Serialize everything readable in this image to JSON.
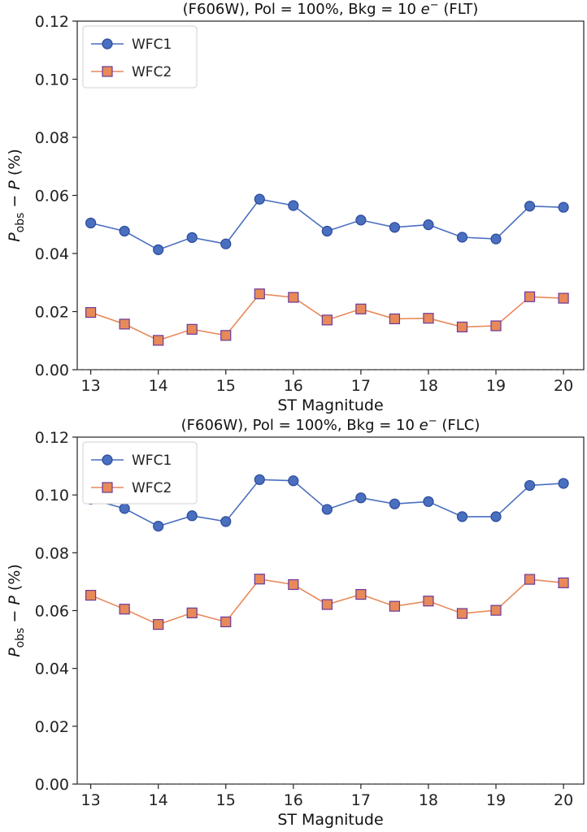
{
  "chart_data": [
    {
      "type": "line",
      "title": "(F606W), Pol = 100%, Bkg = 10 e⁻ (FLT)",
      "xlabel": "ST Magnitude",
      "ylabel": "P_obs − P (%)",
      "xlim": [
        12.8,
        20.3
      ],
      "ylim": [
        0.0,
        0.12
      ],
      "xticks": [
        13,
        14,
        15,
        16,
        17,
        18,
        19,
        20
      ],
      "yticks": [
        0.0,
        0.02,
        0.04,
        0.06,
        0.08,
        0.1,
        0.12
      ],
      "legend_position": "top-left",
      "reference_line": {
        "y": 0.0,
        "style": "dashed"
      },
      "x": [
        13,
        13.5,
        14,
        14.5,
        15,
        15.5,
        16,
        16.5,
        17,
        17.5,
        18,
        18.5,
        19,
        19.5,
        20
      ],
      "series": [
        {
          "name": "WFC1",
          "marker": "circle",
          "color": "#4a6fbf",
          "values": [
            0.0505,
            0.0477,
            0.0413,
            0.0455,
            0.0433,
            0.0587,
            0.0565,
            0.0477,
            0.0515,
            0.049,
            0.0499,
            0.0456,
            0.045,
            0.0563,
            0.0559
          ]
        },
        {
          "name": "WFC2",
          "marker": "square",
          "color": "#e8895a",
          "values": [
            0.0197,
            0.0157,
            0.0101,
            0.0139,
            0.0118,
            0.0261,
            0.0249,
            0.0171,
            0.0209,
            0.0175,
            0.0177,
            0.0147,
            0.0151,
            0.0251,
            0.0246
          ]
        }
      ]
    },
    {
      "type": "line",
      "title": "(F606W), Pol = 100%, Bkg = 10 e⁻ (FLC)",
      "xlabel": "ST Magnitude",
      "ylabel": "P_obs − P (%)",
      "xlim": [
        12.8,
        20.3
      ],
      "ylim": [
        0.0,
        0.12
      ],
      "xticks": [
        13,
        14,
        15,
        16,
        17,
        18,
        19,
        20
      ],
      "yticks": [
        0.0,
        0.02,
        0.04,
        0.06,
        0.08,
        0.1,
        0.12
      ],
      "legend_position": "top-left",
      "reference_line": {
        "y": 0.0,
        "style": "dashed"
      },
      "x": [
        13,
        13.5,
        14,
        14.5,
        15,
        15.5,
        16,
        16.5,
        17,
        17.5,
        18,
        18.5,
        19,
        19.5,
        20
      ],
      "series": [
        {
          "name": "WFC1",
          "marker": "circle",
          "color": "#4a6fbf",
          "values": [
            0.0985,
            0.0953,
            0.0892,
            0.0928,
            0.0908,
            0.1053,
            0.1049,
            0.095,
            0.099,
            0.0969,
            0.0977,
            0.0925,
            0.0925,
            0.1033,
            0.104
          ]
        },
        {
          "name": "WFC2",
          "marker": "square",
          "color": "#e8895a",
          "values": [
            0.0653,
            0.0605,
            0.0552,
            0.0592,
            0.0561,
            0.0709,
            0.069,
            0.0621,
            0.0656,
            0.0615,
            0.0633,
            0.059,
            0.0601,
            0.0708,
            0.0696
          ]
        }
      ]
    }
  ]
}
